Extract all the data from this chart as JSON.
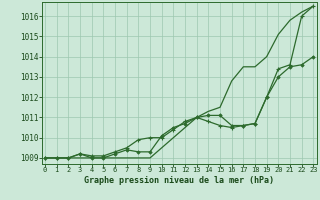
{
  "x": [
    0,
    1,
    2,
    3,
    4,
    5,
    6,
    7,
    8,
    9,
    10,
    11,
    12,
    13,
    14,
    15,
    16,
    17,
    18,
    19,
    20,
    21,
    22,
    23
  ],
  "line1_smooth": [
    1009.0,
    1009.0,
    1009.0,
    1009.0,
    1009.0,
    1009.0,
    1009.0,
    1009.0,
    1009.0,
    1009.0,
    1009.5,
    1010.0,
    1010.5,
    1011.0,
    1011.3,
    1011.5,
    1012.8,
    1013.5,
    1013.5,
    1014.0,
    1015.1,
    1015.8,
    1016.2,
    1016.5
  ],
  "line2_diamond": [
    1009.0,
    1009.0,
    1009.0,
    1009.2,
    1009.0,
    1009.0,
    1009.2,
    1009.4,
    1009.3,
    1009.3,
    1010.1,
    1010.5,
    1010.7,
    1011.0,
    1011.1,
    1011.1,
    1010.6,
    1010.6,
    1010.7,
    1012.0,
    1013.0,
    1013.5,
    1013.6,
    1014.0
  ],
  "line3_cross": [
    1009.0,
    1009.0,
    1009.0,
    1009.2,
    1009.1,
    1009.1,
    1009.3,
    1009.5,
    1009.9,
    1010.0,
    1010.0,
    1010.4,
    1010.8,
    1011.0,
    1010.8,
    1010.6,
    1010.5,
    1010.6,
    1010.7,
    1012.0,
    1013.4,
    1013.6,
    1016.0,
    1016.5
  ],
  "ylim_min": 1008.7,
  "ylim_max": 1016.7,
  "yticks": [
    1009,
    1010,
    1011,
    1012,
    1013,
    1014,
    1015,
    1016
  ],
  "xticks": [
    0,
    1,
    2,
    3,
    4,
    5,
    6,
    7,
    8,
    9,
    10,
    11,
    12,
    13,
    14,
    15,
    16,
    17,
    18,
    19,
    20,
    21,
    22,
    23
  ],
  "xlabel": "Graphe pression niveau de la mer (hPa)",
  "line_color": "#2d6a2d",
  "bg_color": "#cce8d8",
  "grid_color": "#9dc8b0",
  "text_color": "#1a4a1a"
}
